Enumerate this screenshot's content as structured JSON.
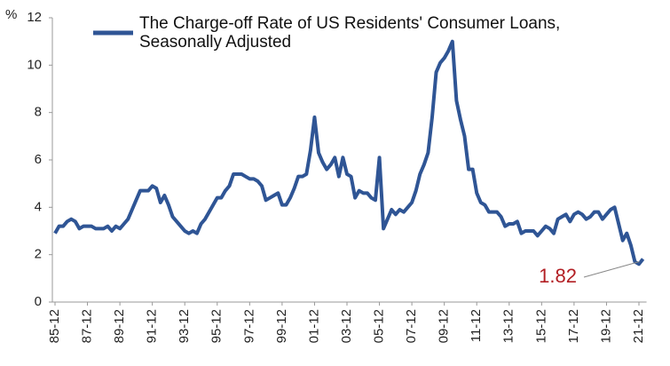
{
  "chart_data": {
    "type": "line",
    "y_label": "%",
    "categories": [
      "85-12",
      null,
      null,
      null,
      null,
      null,
      null,
      null,
      "87-12",
      null,
      null,
      null,
      null,
      null,
      null,
      null,
      "89-12",
      null,
      null,
      null,
      null,
      null,
      null,
      null,
      "91-12",
      null,
      null,
      null,
      null,
      null,
      null,
      null,
      "93-12",
      null,
      null,
      null,
      null,
      null,
      null,
      null,
      "95-12",
      null,
      null,
      null,
      null,
      null,
      null,
      null,
      "97-12",
      null,
      null,
      null,
      null,
      null,
      null,
      null,
      "99-12",
      null,
      null,
      null,
      null,
      null,
      null,
      null,
      "01-12",
      null,
      null,
      null,
      null,
      null,
      null,
      null,
      "03-12",
      null,
      null,
      null,
      null,
      null,
      null,
      null,
      "05-12",
      null,
      null,
      null,
      null,
      null,
      null,
      null,
      "07-12",
      null,
      null,
      null,
      null,
      null,
      null,
      null,
      "09-12",
      null,
      null,
      null,
      null,
      null,
      null,
      null,
      "11-12",
      null,
      null,
      null,
      null,
      null,
      null,
      null,
      "13-12",
      null,
      null,
      null,
      null,
      null,
      null,
      null,
      "15-12",
      null,
      null,
      null,
      null,
      null,
      null,
      null,
      "17-12",
      null,
      null,
      null,
      null,
      null,
      null,
      null,
      "19-12",
      null,
      null,
      null,
      null,
      null,
      null,
      null,
      "21-12",
      null
    ],
    "series": [
      {
        "name": "The Charge-off Rate of US Residents' Consumer Loans, Seasonally Adjusted",
        "color": "#2f5595",
        "values": [
          2.9,
          3.2,
          3.2,
          3.4,
          3.5,
          3.4,
          3.1,
          3.2,
          3.2,
          3.2,
          3.1,
          3.1,
          3.1,
          3.2,
          3.0,
          3.2,
          3.1,
          3.3,
          3.5,
          3.9,
          4.3,
          4.7,
          4.7,
          4.7,
          4.9,
          4.8,
          4.2,
          4.5,
          4.1,
          3.6,
          3.4,
          3.2,
          3.0,
          2.9,
          3.0,
          2.9,
          3.3,
          3.5,
          3.8,
          4.1,
          4.4,
          4.4,
          4.7,
          4.9,
          5.4,
          5.4,
          5.4,
          5.3,
          5.2,
          5.2,
          5.1,
          4.9,
          4.3,
          4.4,
          4.5,
          4.6,
          4.1,
          4.1,
          4.4,
          4.8,
          5.3,
          5.3,
          5.4,
          6.4,
          7.8,
          6.3,
          5.9,
          5.6,
          5.8,
          6.1,
          5.3,
          6.1,
          5.4,
          5.3,
          4.4,
          4.7,
          4.6,
          4.6,
          4.4,
          4.3,
          6.1,
          3.1,
          3.5,
          3.9,
          3.7,
          3.9,
          3.8,
          4.0,
          4.2,
          4.7,
          5.4,
          5.8,
          6.3,
          7.8,
          9.7,
          10.1,
          10.3,
          10.6,
          11.0,
          8.5,
          7.7,
          7.0,
          5.6,
          5.6,
          4.6,
          4.2,
          4.1,
          3.8,
          3.8,
          3.8,
          3.6,
          3.2,
          3.3,
          3.3,
          3.4,
          2.9,
          3.0,
          3.0,
          3.0,
          2.8,
          3.0,
          3.2,
          3.1,
          2.9,
          3.5,
          3.6,
          3.7,
          3.4,
          3.7,
          3.8,
          3.7,
          3.5,
          3.6,
          3.8,
          3.8,
          3.5,
          3.7,
          3.9,
          4.0,
          3.3,
          2.6,
          2.9,
          2.4,
          1.7,
          1.6,
          1.82
        ]
      }
    ],
    "ylim": [
      0,
      12
    ],
    "yticks": [
      0,
      2,
      4,
      6,
      8,
      10,
      12
    ],
    "grid": false
  }
}
